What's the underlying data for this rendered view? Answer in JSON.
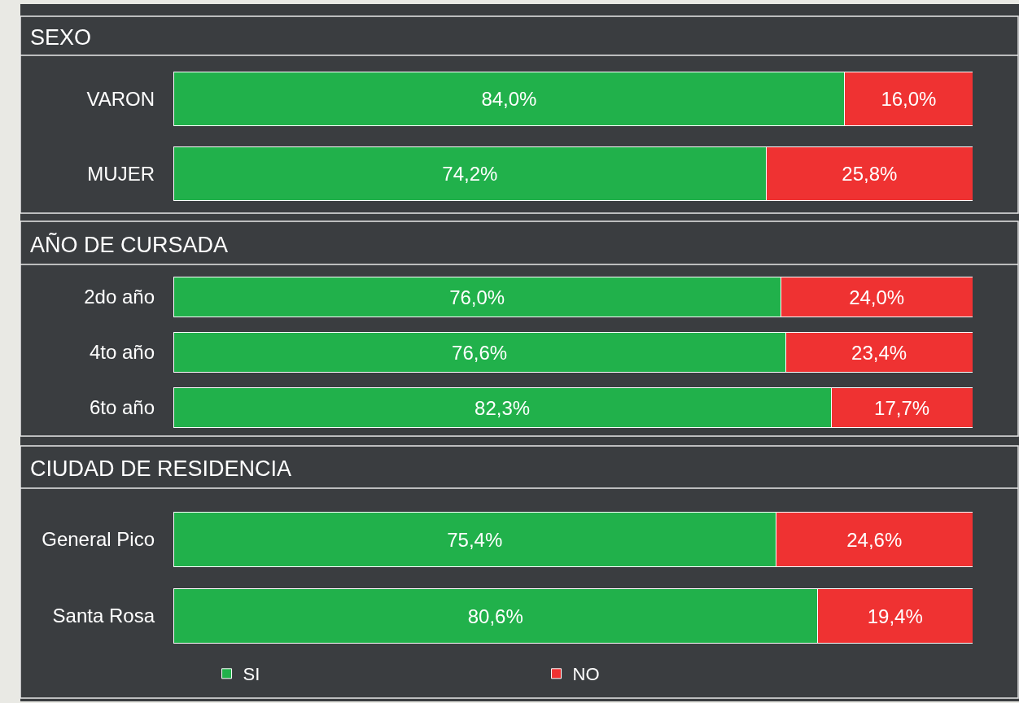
{
  "chart_data": [
    {
      "type": "bar",
      "title": "SEXO",
      "orientation": "horizontal",
      "stacked": true,
      "xlim": [
        0,
        100
      ],
      "tick_labels": "y",
      "legend": false,
      "categories": [
        "VARON",
        "MUJER"
      ],
      "series": [
        {
          "color": "#21b14b",
          "values": [
            84.0,
            74.2
          ],
          "value_labels": [
            "84,0%",
            "74,2%"
          ]
        },
        {
          "color": "#ef3232",
          "values": [
            16.0,
            25.8
          ],
          "value_labels": [
            "16,0%",
            "25,8%"
          ]
        }
      ]
    },
    {
      "type": "bar",
      "title": "AÑO DE CURSADA",
      "orientation": "horizontal",
      "stacked": true,
      "xlim": [
        0,
        100
      ],
      "tick_labels": "y",
      "legend": false,
      "categories": [
        "2do año",
        "4to año",
        "6to año"
      ],
      "series": [
        {
          "color": "#21b14b",
          "values": [
            76.0,
            76.6,
            82.3
          ],
          "value_labels": [
            "76,0%",
            "76,6%",
            "82,3%"
          ]
        },
        {
          "color": "#ef3232",
          "values": [
            24.0,
            23.4,
            17.7
          ],
          "value_labels": [
            "24,0%",
            "23,4%",
            "17,7%"
          ]
        }
      ]
    },
    {
      "type": "bar",
      "title": "CIUDAD DE RESIDENCIA",
      "orientation": "horizontal",
      "stacked": true,
      "xlim": [
        0,
        100
      ],
      "tick_labels": "y",
      "legend": "bottom",
      "categories": [
        "General Pico",
        "Santa Rosa"
      ],
      "series": [
        {
          "name": "SI",
          "color": "#21b14b",
          "values": [
            75.4,
            80.6
          ],
          "value_labels": [
            "75,4%",
            "80,6%"
          ]
        },
        {
          "name": "NO",
          "color": "#ef3232",
          "values": [
            24.6,
            19.4
          ],
          "value_labels": [
            "24,6%",
            "19,4%"
          ]
        }
      ]
    }
  ]
}
